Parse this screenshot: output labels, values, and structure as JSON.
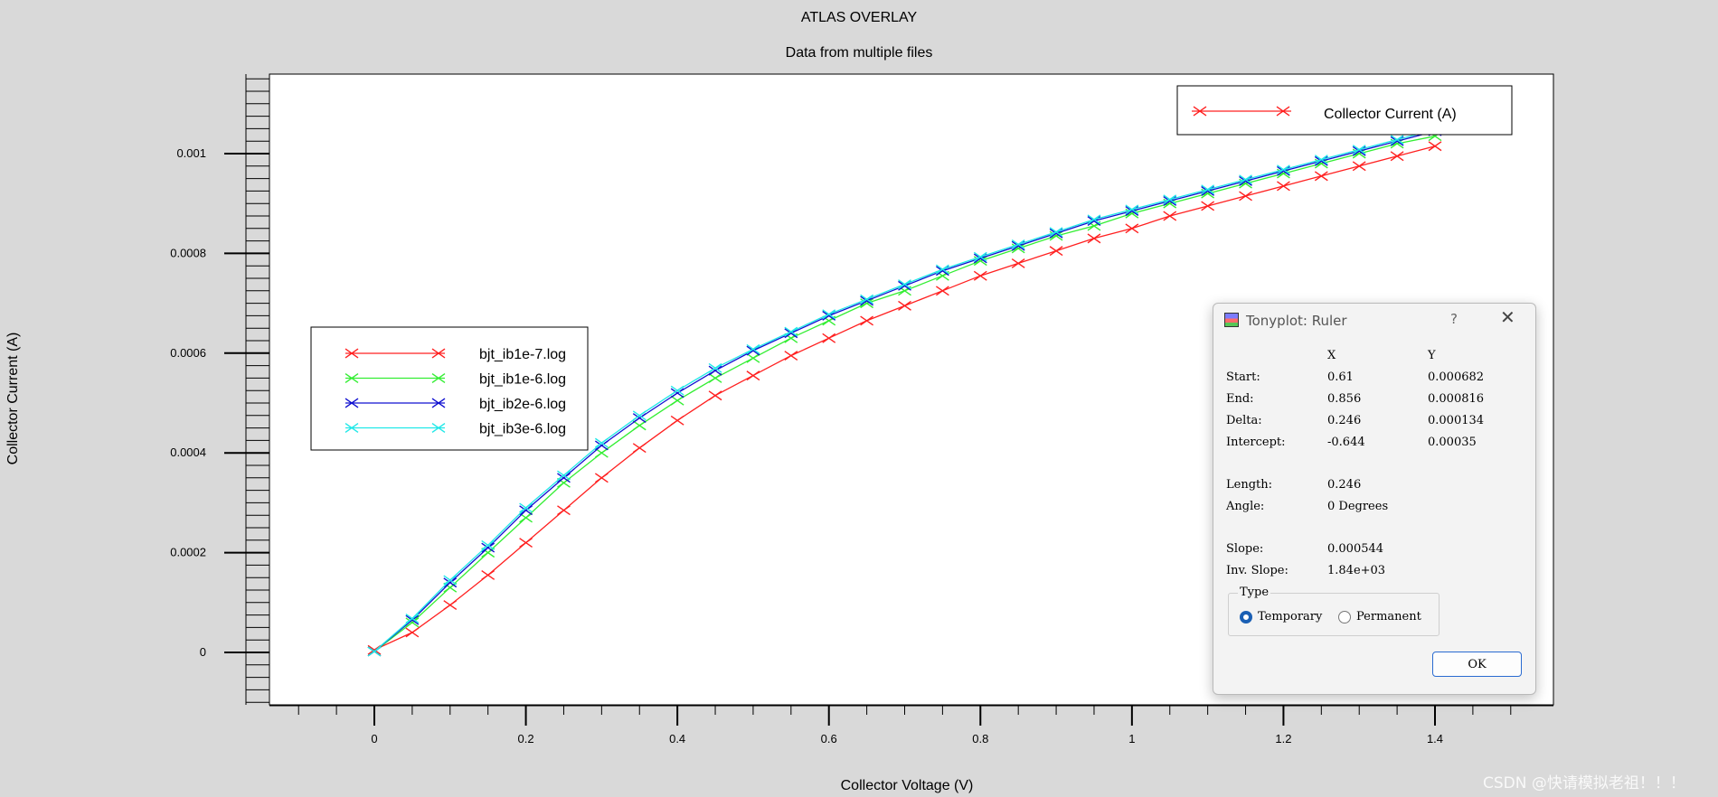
{
  "chart_data": {
    "type": "line",
    "title": "ATLAS OVERLAY",
    "subtitle": "Data from multiple files",
    "xlabel": "Collector Voltage (V)",
    "ylabel": "Collector Current (A)",
    "xlim": [
      -0.1,
      1.55
    ],
    "ylim": [
      -0.0001,
      0.00116
    ],
    "xticks": [
      0,
      0.2,
      0.4,
      0.6,
      0.8,
      1.0,
      1.2,
      1.4
    ],
    "xtick_labels": [
      "0",
      "0.2",
      "0.4",
      "0.6",
      "0.8",
      "1",
      "1.2",
      "1.4"
    ],
    "yticks": [
      0,
      0.0002,
      0.0004,
      0.0006,
      0.0008,
      0.001
    ],
    "ytick_labels": [
      "0",
      "0.0002",
      "0.0004",
      "0.0006",
      "0.0008",
      "0.001"
    ],
    "x": [
      0,
      0.05,
      0.1,
      0.15,
      0.2,
      0.25,
      0.3,
      0.35,
      0.4,
      0.45,
      0.5,
      0.55,
      0.6,
      0.65,
      0.7,
      0.75,
      0.8,
      0.85,
      0.9,
      0.95,
      1.0,
      1.05,
      1.1,
      1.15,
      1.2,
      1.25,
      1.3,
      1.35,
      1.4
    ],
    "series": [
      {
        "name": "bjt_ib1e-7.log",
        "color": "#ff2020",
        "values": [
          5e-06,
          4e-05,
          9.5e-05,
          0.000155,
          0.00022,
          0.000285,
          0.00035,
          0.00041,
          0.000465,
          0.000515,
          0.000555,
          0.000595,
          0.00063,
          0.000665,
          0.000695,
          0.000725,
          0.000755,
          0.00078,
          0.000805,
          0.00083,
          0.00085,
          0.000875,
          0.000895,
          0.000915,
          0.000935,
          0.000955,
          0.000975,
          0.000995,
          0.001015
        ]
      },
      {
        "name": "bjt_ib1e-6.log",
        "color": "#33ee33",
        "values": [
          2e-06,
          6e-05,
          0.00013,
          0.0002,
          0.00027,
          0.00034,
          0.0004,
          0.000455,
          0.000505,
          0.00055,
          0.00059,
          0.00063,
          0.000665,
          0.0007,
          0.000725,
          0.000755,
          0.000785,
          0.00081,
          0.000835,
          0.000855,
          0.00088,
          0.0009,
          0.00092,
          0.00094,
          0.00096,
          0.00098,
          0.001,
          0.00102,
          0.001035
        ]
      },
      {
        "name": "bjt_ib2e-6.log",
        "color": "#1010d0",
        "values": [
          2e-06,
          6.5e-05,
          0.00014,
          0.00021,
          0.000285,
          0.00035,
          0.000415,
          0.00047,
          0.00052,
          0.000565,
          0.000605,
          0.00064,
          0.000675,
          0.000705,
          0.000735,
          0.000765,
          0.00079,
          0.000815,
          0.00084,
          0.000865,
          0.000885,
          0.000905,
          0.000925,
          0.000945,
          0.000965,
          0.000985,
          0.001005,
          0.001025,
          0.001045
        ]
      },
      {
        "name": "bjt_ib3e-6.log",
        "color": "#20e8e8",
        "values": [
          2e-06,
          6.8e-05,
          0.000145,
          0.000215,
          0.00029,
          0.000355,
          0.00042,
          0.000475,
          0.000525,
          0.00057,
          0.000608,
          0.000643,
          0.000678,
          0.000708,
          0.000738,
          0.000768,
          0.000793,
          0.000818,
          0.000843,
          0.000868,
          0.000888,
          0.000908,
          0.000928,
          0.000948,
          0.000968,
          0.000988,
          0.001008,
          0.001028,
          0.001048
        ]
      }
    ],
    "legend_main": [
      {
        "name": "bjt_ib1e-7.log",
        "color": "#ff2020"
      },
      {
        "name": "bjt_ib1e-6.log",
        "color": "#33ee33"
      },
      {
        "name": "bjt_ib2e-6.log",
        "color": "#1010d0"
      },
      {
        "name": "bjt_ib3e-6.log",
        "color": "#20e8e8"
      }
    ],
    "legend_main_placement": "middle-left",
    "legend_quantity": {
      "name": "Collector Current (A)",
      "color": "#ff2020"
    },
    "legend_quantity_placement": "top-right",
    "grid": false
  },
  "ruler": {
    "title": "Tonyplot: Ruler",
    "help": "?",
    "close": "✕",
    "col_x": "X",
    "col_y": "Y",
    "rows": [
      {
        "label": "Start:",
        "x": "0.61",
        "y": "0.000682"
      },
      {
        "label": "End:",
        "x": "0.856",
        "y": "0.000816"
      },
      {
        "label": "Delta:",
        "x": "0.246",
        "y": "0.000134"
      },
      {
        "label": "Intercept:",
        "x": "-0.644",
        "y": "0.00035"
      }
    ],
    "length_label": "Length:",
    "length_value": "0.246",
    "angle_label": "Angle:",
    "angle_value": "0 Degrees",
    "slope_label": "Slope:",
    "slope_value": "0.000544",
    "inv_slope_label": "Inv. Slope:",
    "inv_slope_value": "1.84e+03",
    "type_label": "Type",
    "type_temporary": "Temporary",
    "type_permanent": "Permanent",
    "type_selected": "Temporary",
    "ok_label": "OK"
  },
  "watermark": "CSDN @快请模拟老祖！！！"
}
